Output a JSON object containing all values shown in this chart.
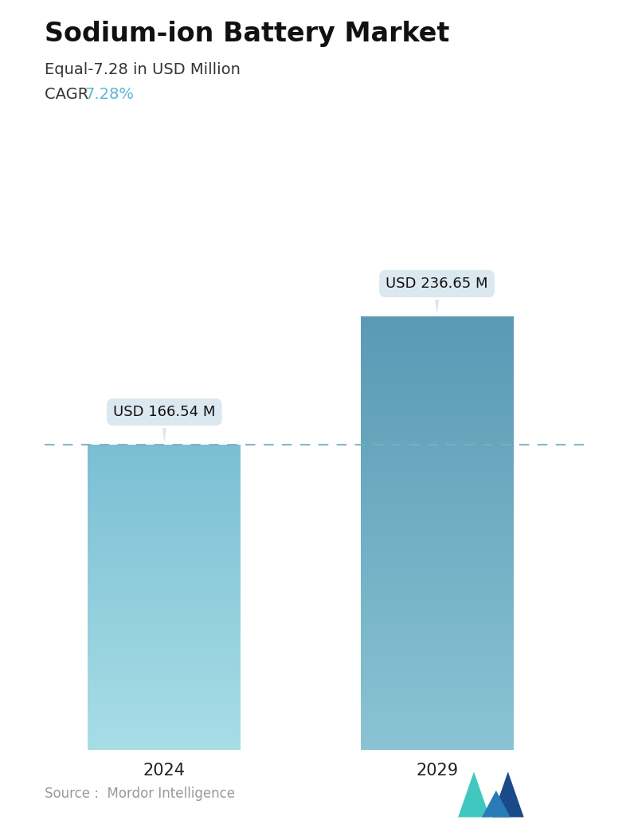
{
  "title": "Sodium-ion Battery Market",
  "subtitle": "Equal-7.28 in USD Million",
  "cagr_label": "CAGR ",
  "cagr_value": "7.28%",
  "cagr_color": "#5bb8d4",
  "categories": [
    "2024",
    "2029"
  ],
  "values": [
    166.54,
    236.65
  ],
  "labels": [
    "USD 166.54 M",
    "USD 236.65 M"
  ],
  "bar_top_colors": [
    "#7bbfd4",
    "#5a9ab5"
  ],
  "bar_bottom_colors": [
    "#a8dde6",
    "#8ac4d4"
  ],
  "dashed_line_y": 166.54,
  "dashed_line_color": "#7aafc0",
  "source_text": "Source :  Mordor Intelligence",
  "source_color": "#999999",
  "background_color": "#ffffff",
  "ylim": [
    0,
    270
  ],
  "annotation_box_color": "#dce8ef",
  "annotation_text_color": "#111111",
  "title_fontsize": 24,
  "subtitle_fontsize": 14,
  "cagr_fontsize": 14,
  "tick_fontsize": 15,
  "logo_colors": [
    "#40c8c0",
    "#2a7ab8",
    "#1a4a8a"
  ]
}
